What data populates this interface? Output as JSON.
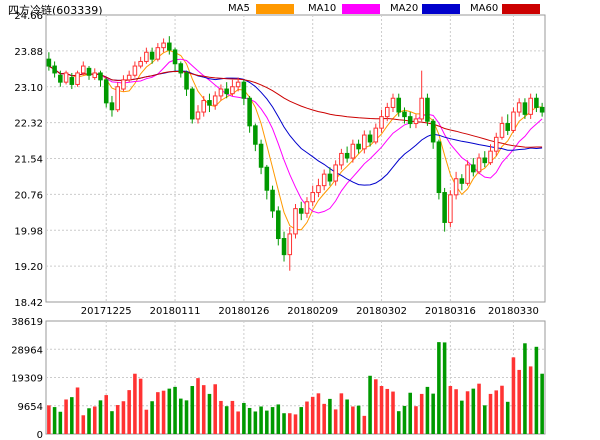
{
  "header": {
    "title": "四方冷链",
    "code": "(603339)"
  },
  "chart_data": {
    "type": "candlestick",
    "legend": [
      {
        "name": "MA5",
        "color": "#ff9900"
      },
      {
        "name": "MA10",
        "color": "#ff00ff"
      },
      {
        "name": "MA20",
        "color": "#0000cc"
      },
      {
        "name": "MA60",
        "color": "#cc0000"
      }
    ],
    "colors": {
      "up": "#ff3333",
      "down": "#009900"
    },
    "price_axis": {
      "min": 18.42,
      "max": 24.66,
      "ticks": [
        "24.66",
        "23.88",
        "23.10",
        "22.32",
        "21.54",
        "20.76",
        "19.98",
        "19.20",
        "18.42"
      ]
    },
    "volume_axis": {
      "min": 0,
      "max": 38619,
      "ticks": [
        "38619",
        "28964",
        "19309",
        "9654",
        "0"
      ]
    },
    "date_labels": [
      {
        "label": "20171225",
        "index": 10
      },
      {
        "label": "20180111",
        "index": 22
      },
      {
        "label": "20180126",
        "index": 34
      },
      {
        "label": "20180209",
        "index": 46
      },
      {
        "label": "20180302",
        "index": 58
      },
      {
        "label": "20180316",
        "index": 70
      },
      {
        "label": "20180330",
        "index": 81
      }
    ],
    "candles": [
      [
        23.7,
        23.55,
        23.85,
        23.45
      ],
      [
        23.55,
        23.4,
        23.65,
        23.3
      ],
      [
        23.35,
        23.2,
        23.45,
        23.1
      ],
      [
        23.2,
        23.4,
        23.45,
        23.15
      ],
      [
        23.3,
        23.15,
        23.4,
        23.05
      ],
      [
        23.15,
        23.4,
        23.45,
        23.1
      ],
      [
        23.4,
        23.55,
        23.65,
        23.35
      ],
      [
        23.5,
        23.35,
        23.55,
        23.25
      ],
      [
        23.3,
        23.4,
        23.5,
        23.25
      ],
      [
        23.4,
        23.25,
        23.45,
        23.1
      ],
      [
        23.25,
        22.75,
        23.3,
        22.65
      ],
      [
        22.75,
        22.6,
        22.9,
        22.45
      ],
      [
        22.6,
        23.1,
        23.2,
        22.55
      ],
      [
        23.05,
        23.25,
        23.35,
        23.0
      ],
      [
        23.25,
        23.35,
        23.45,
        23.2
      ],
      [
        23.35,
        23.55,
        23.65,
        23.3
      ],
      [
        23.55,
        23.65,
        23.75,
        23.5
      ],
      [
        23.65,
        23.85,
        23.95,
        23.6
      ],
      [
        23.85,
        23.7,
        23.95,
        23.6
      ],
      [
        23.7,
        23.95,
        24.05,
        23.65
      ],
      [
        23.95,
        24.05,
        24.15,
        23.85
      ],
      [
        24.05,
        23.9,
        24.2,
        23.8
      ],
      [
        23.9,
        23.6,
        23.95,
        23.45
      ],
      [
        23.6,
        23.4,
        23.65,
        23.3
      ],
      [
        23.4,
        23.05,
        23.45,
        22.9
      ],
      [
        23.05,
        22.4,
        23.1,
        22.3
      ],
      [
        22.4,
        22.55,
        22.7,
        22.3
      ],
      [
        22.55,
        22.8,
        22.9,
        22.45
      ],
      [
        22.8,
        22.7,
        22.95,
        22.55
      ],
      [
        22.7,
        22.9,
        23.0,
        22.6
      ],
      [
        22.9,
        23.05,
        23.15,
        22.8
      ],
      [
        23.05,
        22.95,
        23.2,
        22.85
      ],
      [
        22.95,
        23.1,
        23.25,
        22.9
      ],
      [
        23.1,
        23.2,
        23.3,
        23.0
      ],
      [
        23.2,
        22.85,
        23.25,
        22.7
      ],
      [
        22.85,
        22.25,
        22.9,
        22.1
      ],
      [
        22.25,
        21.85,
        22.3,
        21.7
      ],
      [
        21.85,
        21.35,
        21.95,
        21.2
      ],
      [
        21.35,
        20.85,
        21.4,
        20.65
      ],
      [
        20.85,
        20.4,
        20.95,
        20.25
      ],
      [
        20.4,
        19.8,
        20.5,
        19.65
      ],
      [
        19.8,
        19.45,
        19.95,
        19.3
      ],
      [
        19.45,
        19.9,
        20.05,
        19.1
      ],
      [
        19.9,
        20.45,
        20.55,
        19.8
      ],
      [
        20.45,
        20.35,
        20.6,
        20.2
      ],
      [
        20.35,
        20.6,
        20.7,
        20.25
      ],
      [
        20.6,
        20.8,
        20.95,
        20.5
      ],
      [
        20.8,
        20.95,
        21.1,
        20.7
      ],
      [
        20.95,
        21.2,
        21.3,
        20.85
      ],
      [
        21.2,
        21.05,
        21.35,
        20.95
      ],
      [
        21.05,
        21.4,
        21.5,
        20.95
      ],
      [
        21.4,
        21.65,
        21.75,
        21.3
      ],
      [
        21.65,
        21.55,
        21.8,
        21.45
      ],
      [
        21.55,
        21.85,
        21.95,
        21.45
      ],
      [
        21.85,
        21.75,
        21.95,
        21.65
      ],
      [
        21.75,
        22.05,
        22.15,
        21.65
      ],
      [
        22.05,
        21.9,
        22.15,
        21.8
      ],
      [
        21.9,
        22.2,
        22.3,
        21.85
      ],
      [
        22.2,
        22.45,
        22.6,
        22.1
      ],
      [
        22.45,
        22.65,
        22.75,
        22.35
      ],
      [
        22.65,
        22.85,
        22.95,
        22.55
      ],
      [
        22.85,
        22.55,
        22.95,
        22.45
      ],
      [
        22.55,
        22.45,
        22.65,
        22.3
      ],
      [
        22.45,
        22.3,
        22.55,
        22.2
      ],
      [
        22.3,
        22.4,
        22.5,
        22.2
      ],
      [
        22.4,
        22.85,
        23.45,
        22.35
      ],
      [
        22.85,
        22.35,
        22.95,
        22.25
      ],
      [
        22.35,
        21.9,
        22.4,
        21.75
      ],
      [
        21.9,
        20.8,
        21.95,
        20.65
      ],
      [
        20.8,
        20.15,
        20.9,
        19.95
      ],
      [
        20.15,
        20.75,
        20.85,
        20.05
      ],
      [
        20.75,
        21.1,
        21.25,
        20.65
      ],
      [
        21.1,
        21.0,
        21.2,
        20.85
      ],
      [
        21.0,
        21.4,
        21.5,
        20.95
      ],
      [
        21.4,
        21.25,
        21.55,
        21.15
      ],
      [
        21.25,
        21.55,
        21.65,
        21.2
      ],
      [
        21.55,
        21.45,
        21.7,
        21.35
      ],
      [
        21.45,
        21.7,
        21.85,
        21.4
      ],
      [
        21.7,
        22.0,
        22.1,
        21.6
      ],
      [
        22.0,
        22.3,
        22.45,
        21.95
      ],
      [
        22.3,
        22.15,
        22.5,
        22.05
      ],
      [
        22.15,
        22.55,
        22.65,
        22.1
      ],
      [
        22.55,
        22.75,
        22.85,
        22.45
      ],
      [
        22.75,
        22.5,
        22.85,
        22.4
      ],
      [
        22.5,
        22.85,
        22.95,
        22.4
      ],
      [
        22.85,
        22.65,
        22.95,
        22.55
      ],
      [
        22.65,
        22.55,
        22.75,
        22.45
      ]
    ],
    "volumes": [
      9800,
      9200,
      7600,
      11800,
      12600,
      15900,
      6400,
      8800,
      9400,
      11500,
      13300,
      7800,
      9900,
      11200,
      15000,
      20600,
      18900,
      8300,
      11200,
      14300,
      14800,
      15500,
      16100,
      12100,
      11500,
      16400,
      19100,
      16700,
      13700,
      17000,
      11300,
      9500,
      11300,
      7700,
      10600,
      8900,
      7700,
      9400,
      8000,
      9200,
      10100,
      7100,
      7100,
      6700,
      9200,
      11100,
      12700,
      13900,
      10300,
      12000,
      8400,
      13900,
      11800,
      9400,
      9700,
      6200,
      19900,
      18700,
      16400,
      15400,
      14500,
      7800,
      9600,
      14100,
      9500,
      13700,
      16100,
      13800,
      31400,
      31300,
      16400,
      15300,
      11400,
      14600,
      15500,
      17200,
      9800,
      13700,
      14900,
      16500,
      11000,
      26200,
      21900,
      31000,
      23100,
      29800,
      20600
    ],
    "volume_up": [
      1,
      0,
      0,
      1,
      0,
      1,
      1,
      0,
      1,
      0,
      1,
      0,
      1,
      1,
      1,
      1,
      1,
      1,
      0,
      1,
      1,
      0,
      0,
      0,
      0,
      0,
      1,
      1,
      0,
      1,
      1,
      0,
      1,
      1,
      0,
      0,
      0,
      0,
      0,
      0,
      0,
      0,
      1,
      1,
      0,
      1,
      1,
      1,
      1,
      0,
      1,
      1,
      0,
      1,
      0,
      1,
      0,
      1,
      1,
      1,
      1,
      0,
      0,
      0,
      1,
      1,
      0,
      0,
      0,
      0,
      1,
      1,
      0,
      1,
      0,
      1,
      0,
      1,
      1,
      1,
      0,
      1,
      1,
      0,
      1,
      0,
      0
    ]
  }
}
